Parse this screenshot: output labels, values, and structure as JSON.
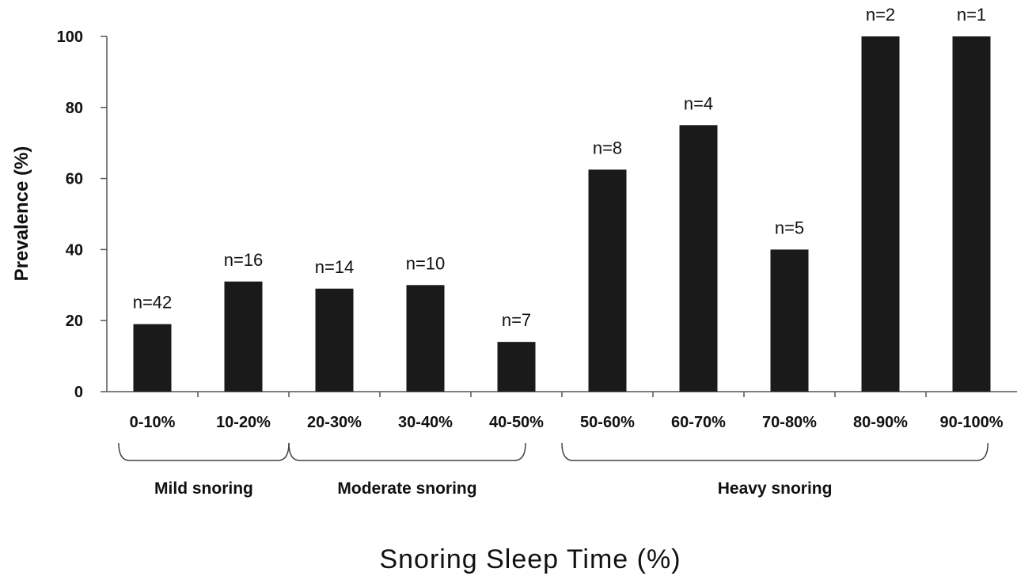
{
  "chart_data": {
    "type": "bar",
    "categories": [
      "0-10%",
      "10-20%",
      "20-30%",
      "30-40%",
      "40-50%",
      "50-60%",
      "60-70%",
      "70-80%",
      "80-90%",
      "90-100%"
    ],
    "values": [
      19,
      31,
      29,
      30,
      14,
      62.5,
      75,
      40,
      100,
      100
    ],
    "n_labels": [
      "n=42",
      "n=16",
      "n=14",
      "n=10",
      "n=7",
      "n=8",
      "n=4",
      "n=5",
      "n=2",
      "n=1"
    ],
    "groups": [
      {
        "label": "Mild snoring",
        "categories": [
          "0-10%",
          "10-20%"
        ]
      },
      {
        "label": "Moderate snoring",
        "categories": [
          "20-30%",
          "30-40%",
          "40-50%"
        ]
      },
      {
        "label": "Heavy snoring",
        "categories": [
          "50-60%",
          "60-70%",
          "70-80%",
          "80-90%",
          "90-100%"
        ]
      }
    ],
    "xlabel": "Snoring Sleep Time (%)",
    "ylabel": "Prevalence (%)",
    "ylim": [
      0,
      100
    ],
    "yticks": [
      0,
      20,
      40,
      60,
      80,
      100
    ],
    "grid": false,
    "bar_color": "#1a1a1a"
  }
}
